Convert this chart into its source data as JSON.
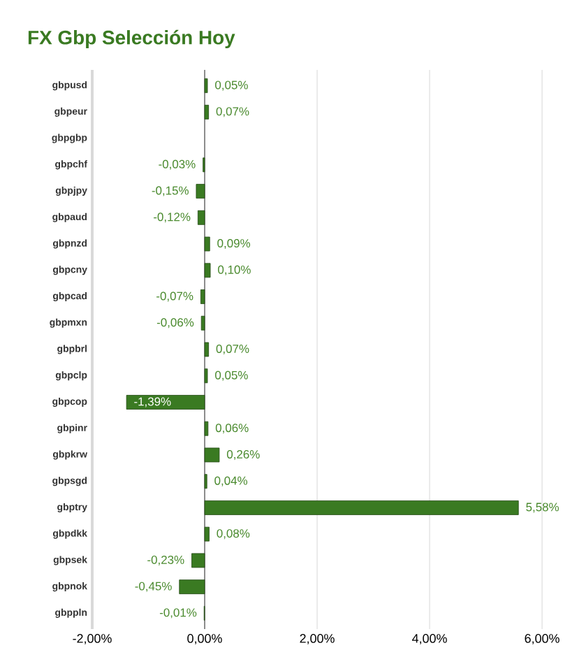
{
  "chart_data": {
    "type": "bar",
    "orientation": "horizontal",
    "title": "FX Gbp Selección Hoy",
    "categories": [
      "gbpusd",
      "gbpeur",
      "gbpgbp",
      "gbpchf",
      "gbpjpy",
      "gbpaud",
      "gbpnzd",
      "gbpcny",
      "gbpcad",
      "gbpmxn",
      "gbpbrl",
      "gbpclp",
      "gbpcop",
      "gbpinr",
      "gbpkrw",
      "gbpsgd",
      "gbptry",
      "gbpdkk",
      "gbpsek",
      "gbpnok",
      "gbppln"
    ],
    "values": [
      0.05,
      0.07,
      null,
      -0.03,
      -0.15,
      -0.12,
      0.09,
      0.1,
      -0.07,
      -0.06,
      0.07,
      0.05,
      -1.39,
      0.06,
      0.26,
      0.04,
      5.58,
      0.08,
      -0.23,
      -0.45,
      -0.01
    ],
    "value_labels": [
      "0,05%",
      "0,07%",
      null,
      "-0,03%",
      "-0,15%",
      "-0,12%",
      "0,09%",
      "0,10%",
      "-0,07%",
      "-0,06%",
      "0,07%",
      "0,05%",
      "-1,39%",
      "0,06%",
      "0,26%",
      "0,04%",
      "5,58%",
      "0,08%",
      "-0,23%",
      "-0,45%",
      "-0,01%"
    ],
    "color": "#3a7a22",
    "xlim": [
      -2,
      6
    ],
    "xticks": [
      {
        "value": -2,
        "label": "-2,00%"
      },
      {
        "value": 0,
        "label": "0,00%"
      },
      {
        "value": 2,
        "label": "2,00%"
      },
      {
        "value": 4,
        "label": "4,00%"
      },
      {
        "value": 6,
        "label": "6,00%"
      }
    ],
    "grid": "x"
  }
}
